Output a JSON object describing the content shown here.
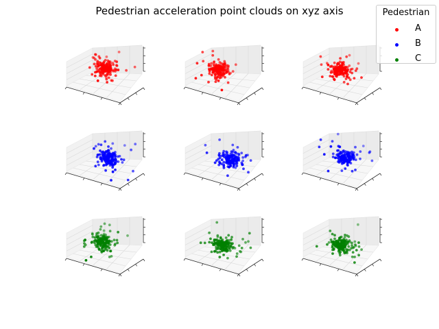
{
  "chart_data": {
    "type": "scatter",
    "title": "Pedestrian acceleration point clouds on xyz axis",
    "grid": true,
    "legend": {
      "title": "Pedestrian",
      "placement": "top-right",
      "entries": [
        {
          "label": "A",
          "color": "#ff0000"
        },
        {
          "label": "B",
          "color": "#0000ff"
        },
        {
          "label": "C",
          "color": "#008000"
        }
      ]
    },
    "subplots": [
      {
        "row": 0,
        "col": 0,
        "pedestrian": "A",
        "color": "#ff0000",
        "seed": 11,
        "cluster": [
          0.45,
          0.55,
          0.6
        ]
      },
      {
        "row": 0,
        "col": 1,
        "pedestrian": "A",
        "color": "#ff0000",
        "seed": 12,
        "cluster": [
          0.35,
          0.5,
          0.55
        ]
      },
      {
        "row": 0,
        "col": 2,
        "pedestrian": "A",
        "color": "#ff0000",
        "seed": 13,
        "cluster": [
          0.45,
          0.45,
          0.6
        ]
      },
      {
        "row": 1,
        "col": 0,
        "pedestrian": "B",
        "color": "#0000ff",
        "seed": 21,
        "cluster": [
          0.55,
          0.45,
          0.55
        ]
      },
      {
        "row": 1,
        "col": 1,
        "pedestrian": "B",
        "color": "#0000ff",
        "seed": 22,
        "cluster": [
          0.6,
          0.5,
          0.5
        ]
      },
      {
        "row": 1,
        "col": 2,
        "pedestrian": "B",
        "color": "#0000ff",
        "seed": 23,
        "cluster": [
          0.55,
          0.5,
          0.55
        ]
      },
      {
        "row": 2,
        "col": 0,
        "pedestrian": "C",
        "color": "#008000",
        "seed": 31,
        "cluster": [
          0.4,
          0.55,
          0.5
        ]
      },
      {
        "row": 2,
        "col": 1,
        "pedestrian": "C",
        "color": "#008000",
        "seed": 32,
        "cluster": [
          0.45,
          0.5,
          0.45
        ]
      },
      {
        "row": 2,
        "col": 2,
        "pedestrian": "C",
        "color": "#008000",
        "seed": 33,
        "cluster": [
          0.45,
          0.5,
          0.45
        ]
      }
    ]
  }
}
